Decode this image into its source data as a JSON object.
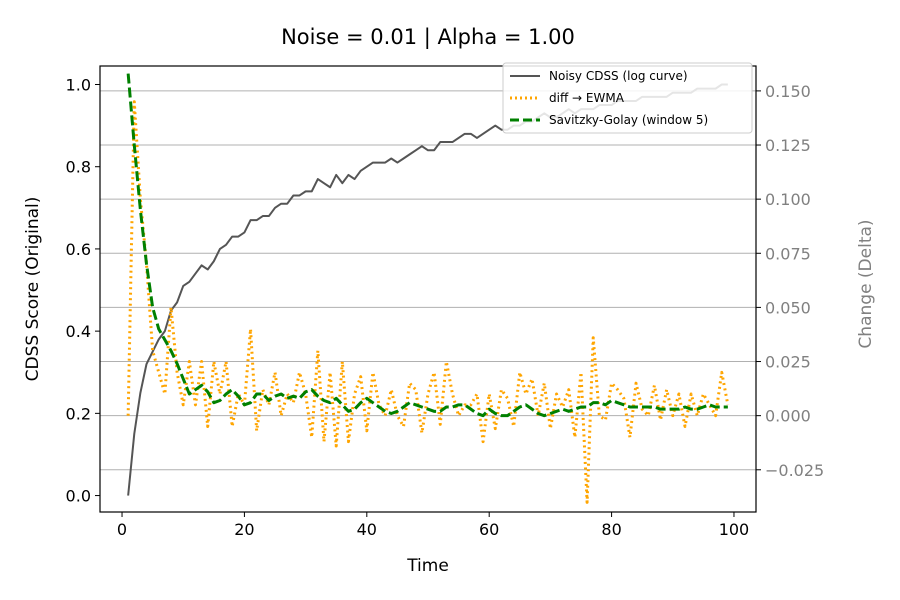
{
  "chart_data": {
    "type": "line",
    "title": "Noise = 0.01 | Alpha = 1.00",
    "xlabel": "Time",
    "ylabel": "CDSS Score (Original)",
    "ylabel_right": "Change (Delta)",
    "xlim": [
      1,
      100
    ],
    "ylim": [
      0,
      1.0
    ],
    "ylim_right": [
      -0.04,
      0.16
    ],
    "x_ticks": [
      0,
      20,
      40,
      60,
      80,
      100
    ],
    "y_ticks": [
      0.0,
      0.2,
      0.4,
      0.6,
      0.8,
      1.0
    ],
    "y_ticks_right": [
      -0.025,
      0.0,
      0.025,
      0.05,
      0.075,
      0.1,
      0.125,
      0.15
    ],
    "x_tick_labels": [
      "0",
      "20",
      "40",
      "60",
      "80",
      "100"
    ],
    "y_tick_labels": [
      "0.0",
      "0.2",
      "0.4",
      "0.6",
      "0.8",
      "1.0"
    ],
    "y_tick_labels_right": [
      "−0.025",
      "0.000",
      "0.025",
      "0.050",
      "0.075",
      "0.100",
      "0.125",
      "0.150"
    ],
    "grid": "horizontal, right axis",
    "legend_position": "top-right",
    "series": [
      {
        "name": "Noisy CDSS (log curve)",
        "axis": "left",
        "color": "#555555",
        "style": "solid",
        "x": [
          1,
          2,
          3,
          4,
          5,
          6,
          7,
          8,
          9,
          10,
          11,
          12,
          13,
          14,
          15,
          16,
          17,
          18,
          19,
          20,
          21,
          22,
          23,
          24,
          25,
          26,
          27,
          28,
          29,
          30,
          31,
          32,
          33,
          34,
          35,
          36,
          37,
          38,
          39,
          40,
          41,
          42,
          43,
          44,
          45,
          46,
          47,
          48,
          49,
          50,
          51,
          52,
          53,
          54,
          55,
          56,
          57,
          58,
          59,
          60,
          61,
          62,
          63,
          64,
          65,
          66,
          67,
          68,
          69,
          70,
          71,
          72,
          73,
          74,
          75,
          76,
          77,
          78,
          79,
          80,
          81,
          82,
          83,
          84,
          85,
          86,
          87,
          88,
          89,
          90,
          91,
          92,
          93,
          94,
          95,
          96,
          97,
          98,
          99
        ],
        "y": [
          0.0,
          0.15,
          0.25,
          0.32,
          0.35,
          0.38,
          0.4,
          0.45,
          0.47,
          0.51,
          0.52,
          0.54,
          0.56,
          0.55,
          0.57,
          0.6,
          0.61,
          0.63,
          0.63,
          0.64,
          0.67,
          0.67,
          0.68,
          0.68,
          0.7,
          0.71,
          0.71,
          0.73,
          0.73,
          0.74,
          0.74,
          0.77,
          0.76,
          0.75,
          0.78,
          0.76,
          0.78,
          0.77,
          0.79,
          0.8,
          0.81,
          0.81,
          0.81,
          0.82,
          0.81,
          0.82,
          0.83,
          0.84,
          0.85,
          0.84,
          0.84,
          0.86,
          0.86,
          0.86,
          0.87,
          0.88,
          0.88,
          0.87,
          0.88,
          0.89,
          0.9,
          0.89,
          0.89,
          0.9,
          0.9,
          0.91,
          0.91,
          0.92,
          0.93,
          0.92,
          0.92,
          0.93,
          0.94,
          0.93,
          0.94,
          0.94,
          0.94,
          0.95,
          0.95,
          0.95,
          0.96,
          0.96,
          0.96,
          0.96,
          0.97,
          0.97,
          0.97,
          0.97,
          0.97,
          0.98,
          0.98,
          0.98,
          0.98,
          0.99,
          0.99,
          0.99,
          0.99,
          1.0,
          1.0
        ]
      },
      {
        "name": "diff → EWMA",
        "axis": "right",
        "color": "#ffa500",
        "style": "dotted",
        "x": [
          1,
          2,
          3,
          4,
          5,
          6,
          7,
          8,
          9,
          10,
          11,
          12,
          13,
          14,
          15,
          16,
          17,
          18,
          19,
          20,
          21,
          22,
          23,
          24,
          25,
          26,
          27,
          28,
          29,
          30,
          31,
          32,
          33,
          34,
          35,
          36,
          37,
          38,
          39,
          40,
          41,
          42,
          43,
          44,
          45,
          46,
          47,
          48,
          49,
          50,
          51,
          52,
          53,
          54,
          55,
          56,
          57,
          58,
          59,
          60,
          61,
          62,
          63,
          64,
          65,
          66,
          67,
          68,
          69,
          70,
          71,
          72,
          73,
          74,
          75,
          76,
          77,
          78,
          79,
          80,
          81,
          82,
          83,
          84,
          85,
          86,
          87,
          88,
          89,
          90,
          91,
          92,
          93,
          94,
          95,
          96,
          97,
          98,
          99
        ],
        "y": [
          0.0,
          0.145,
          0.1,
          0.07,
          0.03,
          0.02,
          0.01,
          0.05,
          0.02,
          0.005,
          0.025,
          0.005,
          0.025,
          -0.005,
          0.025,
          0.01,
          0.025,
          -0.005,
          0.01,
          0.005,
          0.04,
          -0.007,
          0.012,
          0.005,
          0.02,
          0.0,
          0.01,
          0.006,
          0.02,
          0.01,
          -0.01,
          0.03,
          -0.012,
          0.02,
          -0.014,
          0.025,
          -0.012,
          0.01,
          0.018,
          -0.007,
          0.02,
          0.005,
          0.0,
          0.012,
          0.0,
          -0.005,
          0.015,
          0.012,
          -0.008,
          0.01,
          0.02,
          -0.004,
          0.025,
          0.01,
          0.0,
          0.005,
          0.005,
          0.01,
          -0.012,
          0.01,
          -0.006,
          0.012,
          0.008,
          -0.005,
          0.02,
          0.01,
          0.017,
          0.0,
          0.015,
          -0.006,
          0.01,
          0.004,
          0.012,
          -0.01,
          0.02,
          -0.04,
          0.036,
          0.0,
          -0.002,
          0.015,
          0.012,
          0.008,
          -0.01,
          0.015,
          0.003,
          0.0,
          0.014,
          -0.002,
          0.012,
          0.0,
          0.01,
          -0.005,
          0.01,
          0.0,
          0.01,
          0.005,
          0.0,
          0.02,
          0.005
        ]
      },
      {
        "name": "Savitzky-Golay (window 5)",
        "axis": "right",
        "color": "#008000",
        "style": "dashed",
        "x": [
          1,
          2,
          3,
          4,
          5,
          6,
          7,
          8,
          9,
          10,
          11,
          12,
          13,
          14,
          15,
          16,
          17,
          18,
          19,
          20,
          21,
          22,
          23,
          24,
          25,
          26,
          27,
          28,
          29,
          30,
          31,
          32,
          33,
          34,
          35,
          36,
          37,
          38,
          39,
          40,
          41,
          42,
          43,
          44,
          45,
          46,
          47,
          48,
          49,
          50,
          51,
          52,
          53,
          54,
          55,
          56,
          57,
          58,
          59,
          60,
          61,
          62,
          63,
          64,
          65,
          66,
          67,
          68,
          69,
          70,
          71,
          72,
          73,
          74,
          75,
          76,
          77,
          78,
          79,
          80,
          81,
          82,
          83,
          84,
          85,
          86,
          87,
          88,
          89,
          90,
          91,
          92,
          93,
          94,
          95,
          96,
          97,
          98,
          99
        ],
        "y": [
          0.158,
          0.125,
          0.095,
          0.07,
          0.05,
          0.04,
          0.035,
          0.03,
          0.024,
          0.017,
          0.01,
          0.012,
          0.014,
          0.011,
          0.006,
          0.007,
          0.01,
          0.012,
          0.009,
          0.005,
          0.006,
          0.01,
          0.01,
          0.007,
          0.009,
          0.01,
          0.008,
          0.009,
          0.008,
          0.011,
          0.012,
          0.009,
          0.007,
          0.006,
          0.008,
          0.005,
          0.002,
          0.003,
          0.006,
          0.008,
          0.006,
          0.004,
          0.002,
          0.001,
          0.002,
          0.004,
          0.006,
          0.005,
          0.004,
          0.003,
          0.002,
          0.002,
          0.004,
          0.004,
          0.005,
          0.005,
          0.003,
          0.001,
          0.0,
          0.003,
          0.001,
          0.0,
          0.0,
          0.002,
          0.004,
          0.005,
          0.003,
          0.001,
          0.0,
          0.001,
          0.002,
          0.003,
          0.002,
          0.003,
          0.004,
          0.004,
          0.006,
          0.006,
          0.005,
          0.007,
          0.006,
          0.005,
          0.004,
          0.004,
          0.004,
          0.004,
          0.004,
          0.003,
          0.003,
          0.003,
          0.003,
          0.004,
          0.003,
          0.003,
          0.004,
          0.005,
          0.004,
          0.004,
          0.004
        ]
      }
    ]
  }
}
